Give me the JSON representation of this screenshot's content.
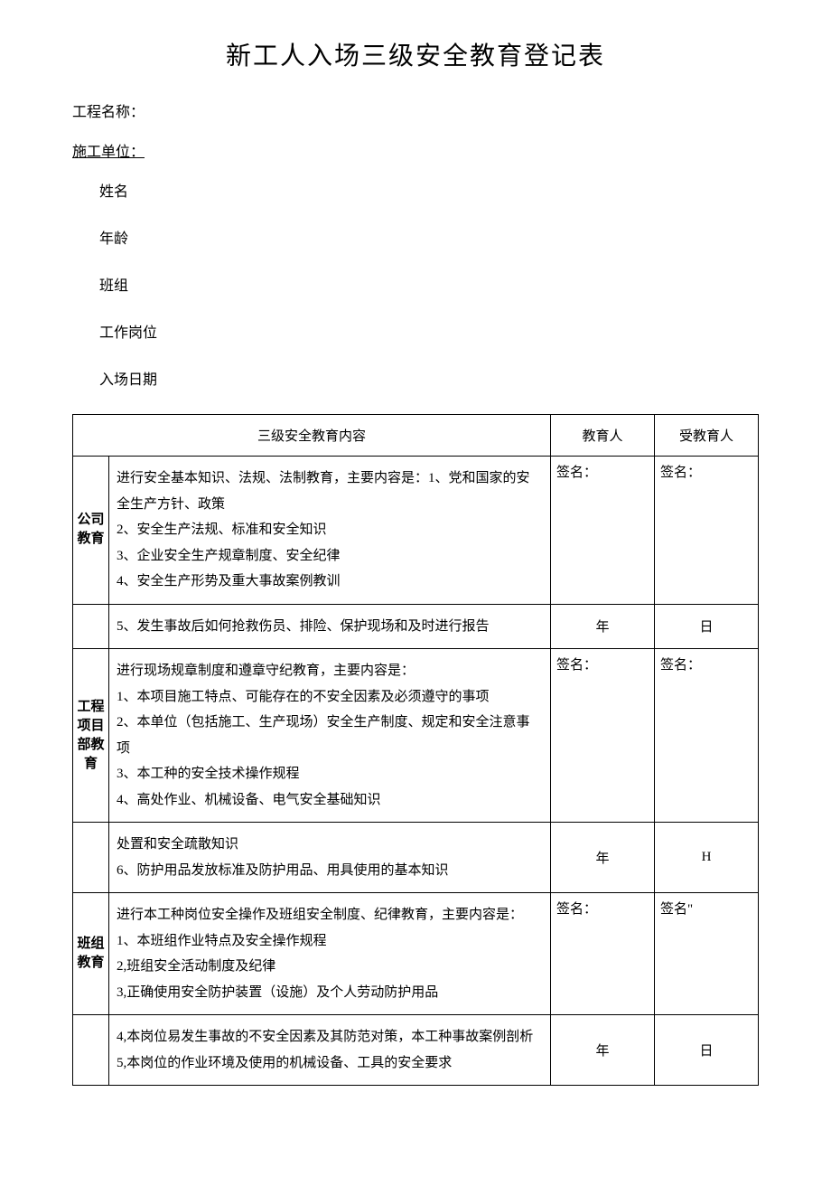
{
  "title": "新工人入场三级安全教育登记表",
  "header": {
    "project_name_label": "工程名称：",
    "construction_unit_label": "施工单位：",
    "name_label": "姓名",
    "age_label": "年龄",
    "team_label": "班组",
    "position_label": "工作岗位",
    "entry_date_label": "入场日期"
  },
  "table_header": {
    "content_label": "三级安全教育内容",
    "educator_label": "教育人",
    "trainee_label": "受教育人"
  },
  "sections": {
    "company": {
      "label": "公司教育",
      "content_top": "进行安全基本知识、法规、法制教育，主要内容是：1、党和国家的安全生产方针、政策\n2、安全生产法规、标准和安全知识\n3、企业安全生产规章制度、安全纪律\n4、安全生产形势及重大事故案例教训",
      "content_bottom": "5、发生事故后如何抢救伤员、排险、保护现场和及时进行报告",
      "sign_label": "签名：",
      "date_year": "年",
      "date_day": "日"
    },
    "project": {
      "label": "工程项目部教育",
      "content_top": "进行现场规章制度和遵章守纪教育，主要内容是：\n1、本项目施工特点、可能存在的不安全因素及必须遵守的事项\n2、本单位（包括施工、生产现场）安全生产制度、规定和安全注意事项\n3、本工种的安全技术操作规程\n4、高处作业、机械设备、电气安全基础知识",
      "content_bottom": "处置和安全疏散知识\n6、防护用品发放标准及防护用品、用具使用的基本知识",
      "sign_label": "签名：",
      "date_year": "年",
      "date_day": "H"
    },
    "team": {
      "label": "班组教育",
      "content_top": "进行本工种岗位安全操作及班组安全制度、纪律教育，主要内容是：\n1、本班组作业特点及安全操作规程\n2,班组安全活动制度及纪律\n3,正确使用安全防护装置（设施）及个人劳动防护用品",
      "content_bottom": "4,本岗位易发生事故的不安全因素及其防范对策，本工种事故案例剖析\n5,本岗位的作业环境及使用的机械设备、工具的安全要求",
      "sign_label_1": "签名：",
      "sign_label_2": "签名\"",
      "date_year": "年",
      "date_day": "日"
    }
  }
}
